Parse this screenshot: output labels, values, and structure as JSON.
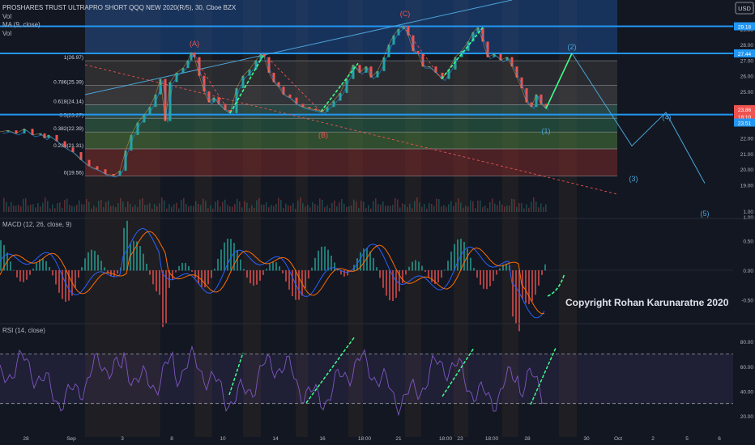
{
  "header": {
    "title": "PROSHARES TRUST ULTRAPRO SHORT QQQ NEW 2020(R/5), 30, Cboe BZX",
    "vol": "Vol",
    "ma": "MA (9, close)",
    "vol2": "Vol",
    "currency": "USD"
  },
  "colors": {
    "background": "#131722",
    "up": "#26a69a",
    "down": "#ef5350",
    "level_line": "#2196f3",
    "arrow": "#3dff8a",
    "wave": "#4aa3d9",
    "macd": "#2962ff",
    "signal": "#ff6d00",
    "rsi": "#7e57c2"
  },
  "chart_data": [
    {
      "type": "line",
      "title": "PROSHARES TRUST ULTRAPRO SHORT QQQ NEW 2020(R/5), 30, Cboe BZX",
      "price_axis": [
        "29.00",
        "28.00",
        "27.00",
        "26.00",
        "25.00",
        "24.00",
        "23.00",
        "22.00",
        "21.00",
        "20.00",
        "19.00",
        "1.00"
      ],
      "ylim": [
        18.5,
        30.0
      ],
      "x_ticks": [
        "28",
        "Sep",
        "3",
        "8",
        "10",
        "14",
        "16",
        "18:00",
        "21",
        "18:00",
        "23",
        "18:00",
        "28",
        "30",
        "Oct",
        "2",
        "5",
        "6"
      ],
      "price_tags": [
        {
          "label": "29.18",
          "value": 29.18,
          "color": "#2196f3"
        },
        {
          "label": "27.44",
          "value": 27.44,
          "color": "#2196f3"
        },
        {
          "label": "23.86",
          "value": 23.86,
          "color": "#ef5350"
        },
        {
          "label": "18:10",
          "value": 23.4,
          "color": "#ef5350"
        },
        {
          "label": "23.51",
          "value": 23.0,
          "color": "#2196f3"
        }
      ],
      "fib_levels": [
        {
          "label": "1(26.97)",
          "ratio": 1,
          "value": 26.97
        },
        {
          "label": "0.786(25.39)",
          "ratio": 0.786,
          "value": 25.39
        },
        {
          "label": "0.618(24.14)",
          "ratio": 0.618,
          "value": 24.14
        },
        {
          "label": "0.5(23.27)",
          "ratio": 0.5,
          "value": 23.27
        },
        {
          "label": "0.382(22.39)",
          "ratio": 0.382,
          "value": 22.39
        },
        {
          "label": "0.236(21.31)",
          "ratio": 0.236,
          "value": 21.31
        },
        {
          "label": "0(19.56)",
          "ratio": 0,
          "value": 19.56
        }
      ],
      "horizontal_levels": [
        29.18,
        27.44,
        23.51
      ],
      "wave_labels": [
        "(A)",
        "(B)",
        "(C)",
        "(1)",
        "(2)",
        "(3)",
        "(4)",
        "(5)"
      ],
      "price_series": [
        [
          0,
          22.4
        ],
        [
          10,
          22.5
        ],
        [
          20,
          22.3
        ],
        [
          30,
          22.6
        ],
        [
          40,
          22.2
        ],
        [
          50,
          22.3
        ],
        [
          55,
          22.0
        ],
        [
          60,
          22.2
        ],
        [
          70,
          21.8
        ],
        [
          80,
          21.4
        ],
        [
          90,
          21.1
        ],
        [
          100,
          20.6
        ],
        [
          110,
          20.2
        ],
        [
          120,
          20.0
        ],
        [
          130,
          19.7
        ],
        [
          140,
          19.6
        ],
        [
          148,
          19.9
        ],
        [
          155,
          21.2
        ],
        [
          162,
          22.2
        ],
        [
          170,
          23.0
        ],
        [
          178,
          23.5
        ],
        [
          185,
          24.0
        ],
        [
          192,
          24.8
        ],
        [
          198,
          25.8
        ],
        [
          204,
          23.1
        ],
        [
          210,
          25.6
        ],
        [
          218,
          26.2
        ],
        [
          226,
          26.5
        ],
        [
          232,
          27.0
        ],
        [
          236,
          27.5
        ],
        [
          240,
          27.2
        ],
        [
          246,
          26.0
        ],
        [
          252,
          25.0
        ],
        [
          258,
          24.3
        ],
        [
          264,
          24.6
        ],
        [
          270,
          24.2
        ],
        [
          278,
          23.8
        ],
        [
          284,
          23.6
        ],
        [
          292,
          25.2
        ],
        [
          300,
          26.0
        ],
        [
          308,
          26.4
        ],
        [
          316,
          27.0
        ],
        [
          322,
          27.4
        ],
        [
          326,
          27.2
        ],
        [
          332,
          26.2
        ],
        [
          338,
          25.6
        ],
        [
          344,
          25.3
        ],
        [
          350,
          24.8
        ],
        [
          358,
          24.6
        ],
        [
          366,
          24.2
        ],
        [
          374,
          24.0
        ],
        [
          382,
          23.9
        ],
        [
          390,
          23.8
        ],
        [
          398,
          23.7
        ],
        [
          404,
          24.0
        ],
        [
          412,
          24.4
        ],
        [
          420,
          24.9
        ],
        [
          428,
          25.8
        ],
        [
          436,
          26.7
        ],
        [
          444,
          26.2
        ],
        [
          452,
          26.6
        ],
        [
          458,
          25.9
        ],
        [
          466,
          26.3
        ],
        [
          474,
          27.2
        ],
        [
          480,
          28.0
        ],
        [
          486,
          28.6
        ],
        [
          492,
          29.0
        ],
        [
          498,
          29.2
        ],
        [
          504,
          28.6
        ],
        [
          510,
          27.6
        ],
        [
          516,
          27.4
        ],
        [
          522,
          26.6
        ],
        [
          530,
          26.6
        ],
        [
          538,
          26.2
        ],
        [
          546,
          25.8
        ],
        [
          554,
          26.4
        ],
        [
          562,
          27.2
        ],
        [
          570,
          27.6
        ],
        [
          578,
          28.2
        ],
        [
          584,
          28.8
        ],
        [
          590,
          29.1
        ],
        [
          596,
          28.2
        ],
        [
          602,
          27.2
        ],
        [
          610,
          27.4
        ],
        [
          618,
          27.0
        ],
        [
          626,
          27.2
        ],
        [
          632,
          26.6
        ],
        [
          638,
          25.9
        ],
        [
          644,
          25.2
        ],
        [
          650,
          24.3
        ],
        [
          656,
          24.0
        ],
        [
          662,
          24.8
        ],
        [
          668,
          24.2
        ],
        [
          674,
          23.9
        ]
      ]
    },
    {
      "type": "line",
      "title": "MACD (12, 26, close, 9)",
      "y_ticks": [
        "1.00",
        "0.50",
        "0.00",
        "-0.50"
      ],
      "ylim": [
        -0.75,
        1.0
      ]
    },
    {
      "type": "line",
      "title": "RSI (14, close)",
      "y_ticks": [
        "80.00",
        "60.00",
        "40.00",
        "20.00"
      ],
      "ylim": [
        13,
        88
      ],
      "bands": [
        70,
        30
      ]
    }
  ],
  "annotations": {
    "copyright": "Copyright Rohan Karunaratne 2020"
  }
}
